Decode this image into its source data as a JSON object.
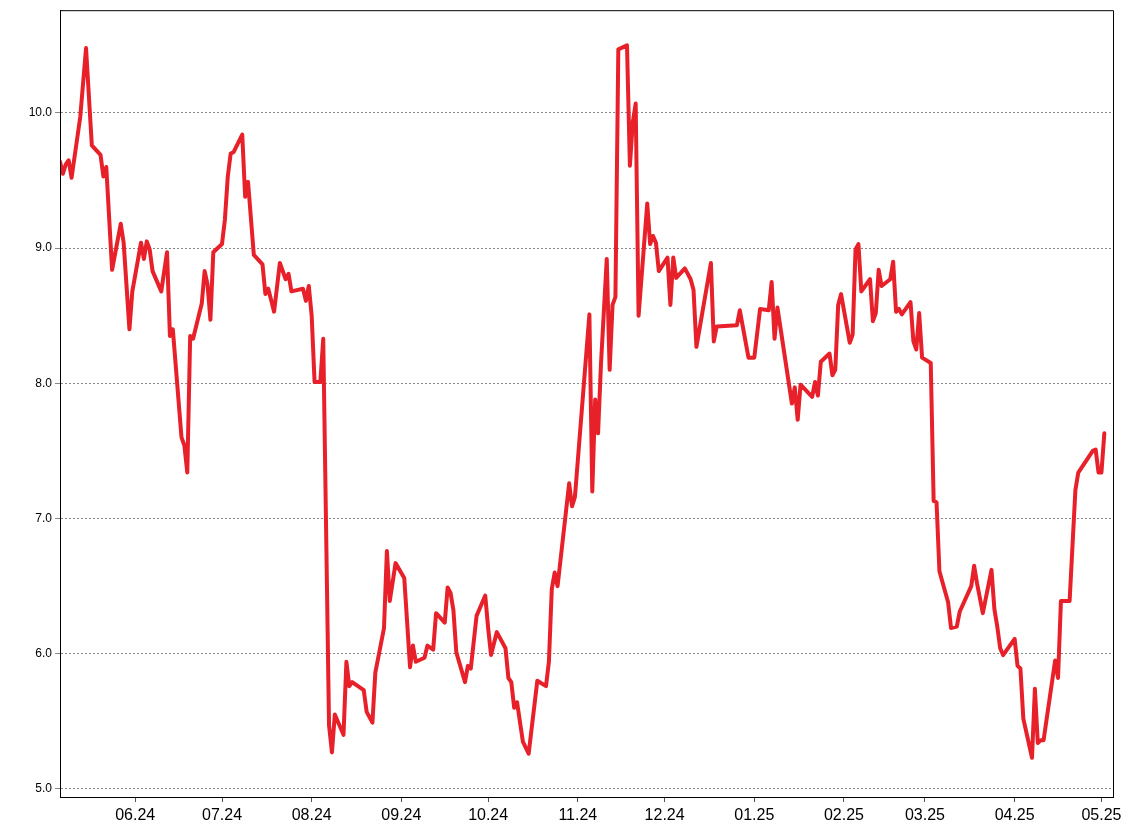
{
  "chart_data": {
    "type": "line",
    "grid": "y",
    "legend": false,
    "marker": "none",
    "line_style": "solid",
    "xlim": [
      "2024-05-06",
      "2025-05-05"
    ],
    "xticks": [
      {
        "value": "2024-06-01",
        "label": "06.24"
      },
      {
        "value": "2024-07-01",
        "label": "07.24"
      },
      {
        "value": "2024-08-01",
        "label": "08.24"
      },
      {
        "value": "2024-09-01",
        "label": "09.24"
      },
      {
        "value": "2024-10-01",
        "label": "10.24"
      },
      {
        "value": "2024-11-01",
        "label": "11.24"
      },
      {
        "value": "2024-12-01",
        "label": "12.24"
      },
      {
        "value": "2025-01-01",
        "label": "01.25"
      },
      {
        "value": "2025-02-01",
        "label": "02.25"
      },
      {
        "value": "2025-03-01",
        "label": "03.25"
      },
      {
        "value": "2025-04-01",
        "label": "04.25"
      },
      {
        "value": "2025-05-01",
        "label": "05.25"
      }
    ],
    "ylim": [
      4.94,
      10.76
    ],
    "yticks": [
      {
        "value": 5,
        "label": "5.0"
      },
      {
        "value": 6,
        "label": "6.0"
      },
      {
        "value": 7,
        "label": "7.0"
      },
      {
        "value": 8,
        "label": "8.0"
      },
      {
        "value": 9,
        "label": "9.0"
      },
      {
        "value": 10,
        "label": "10.0"
      }
    ],
    "series": [
      {
        "color": "#e8202a",
        "x": [
          "2024-05-06",
          "2024-05-07",
          "2024-05-08",
          "2024-05-09",
          "2024-05-10",
          "2024-05-13",
          "2024-05-15",
          "2024-05-17",
          "2024-05-20",
          "2024-05-21",
          "2024-05-22",
          "2024-05-24",
          "2024-05-27",
          "2024-05-28",
          "2024-05-30",
          "2024-05-31",
          "2024-06-03",
          "2024-06-04",
          "2024-06-05",
          "2024-06-06",
          "2024-06-07",
          "2024-06-10",
          "2024-06-12",
          "2024-06-13",
          "2024-06-14",
          "2024-06-17",
          "2024-06-18",
          "2024-06-19",
          "2024-06-20",
          "2024-06-21",
          "2024-06-24",
          "2024-06-25",
          "2024-06-26",
          "2024-06-27",
          "2024-06-28",
          "2024-07-01",
          "2024-07-02",
          "2024-07-03",
          "2024-07-04",
          "2024-07-05",
          "2024-07-08",
          "2024-07-09",
          "2024-07-10",
          "2024-07-12",
          "2024-07-15",
          "2024-07-16",
          "2024-07-17",
          "2024-07-19",
          "2024-07-21",
          "2024-07-23",
          "2024-07-24",
          "2024-07-25",
          "2024-07-29",
          "2024-07-30",
          "2024-07-31",
          "2024-08-01",
          "2024-08-02",
          "2024-08-04",
          "2024-08-05",
          "2024-08-07",
          "2024-08-08",
          "2024-08-09",
          "2024-08-12",
          "2024-08-13",
          "2024-08-14",
          "2024-08-15",
          "2024-08-19",
          "2024-08-20",
          "2024-08-22",
          "2024-08-23",
          "2024-08-26",
          "2024-08-27",
          "2024-08-28",
          "2024-08-30",
          "2024-09-02",
          "2024-09-04",
          "2024-09-05",
          "2024-09-06",
          "2024-09-09",
          "2024-09-10",
          "2024-09-12",
          "2024-09-13",
          "2024-09-16",
          "2024-09-17",
          "2024-09-18",
          "2024-09-19",
          "2024-09-20",
          "2024-09-23",
          "2024-09-24",
          "2024-09-25",
          "2024-09-27",
          "2024-09-30",
          "2024-10-01",
          "2024-10-02",
          "2024-10-04",
          "2024-10-07",
          "2024-10-08",
          "2024-10-09",
          "2024-10-10",
          "2024-10-11",
          "2024-10-13",
          "2024-10-15",
          "2024-10-18",
          "2024-10-21",
          "2024-10-22",
          "2024-10-23",
          "2024-10-24",
          "2024-10-25",
          "2024-10-29",
          "2024-10-30",
          "2024-10-31",
          "2024-11-05",
          "2024-11-06",
          "2024-11-07",
          "2024-11-08",
          "2024-11-09",
          "2024-11-11",
          "2024-11-12",
          "2024-11-13",
          "2024-11-14",
          "2024-11-15",
          "2024-11-18",
          "2024-11-19",
          "2024-11-20",
          "2024-11-21",
          "2024-11-22",
          "2024-11-25",
          "2024-11-26",
          "2024-11-27",
          "2024-11-28",
          "2024-11-29",
          "2024-12-02",
          "2024-12-03",
          "2024-12-04",
          "2024-12-05",
          "2024-12-08",
          "2024-12-10",
          "2024-12-11",
          "2024-12-12",
          "2024-12-17",
          "2024-12-18",
          "2024-12-19",
          "2024-12-26",
          "2024-12-27",
          "2024-12-30",
          "2025-01-01",
          "2025-01-03",
          "2025-01-06",
          "2025-01-07",
          "2025-01-08",
          "2025-01-09",
          "2025-01-14",
          "2025-01-15",
          "2025-01-16",
          "2025-01-17",
          "2025-01-21",
          "2025-01-22",
          "2025-01-23",
          "2025-01-24",
          "2025-01-27",
          "2025-01-28",
          "2025-01-29",
          "2025-01-30",
          "2025-01-31",
          "2025-02-03",
          "2025-02-04",
          "2025-02-05",
          "2025-02-06",
          "2025-02-07",
          "2025-02-10",
          "2025-02-11",
          "2025-02-12",
          "2025-02-13",
          "2025-02-14",
          "2025-02-17",
          "2025-02-18",
          "2025-02-19",
          "2025-02-20",
          "2025-02-21",
          "2025-02-24",
          "2025-02-25",
          "2025-02-26",
          "2025-02-27",
          "2025-02-28",
          "2025-03-03",
          "2025-03-04",
          "2025-03-05",
          "2025-03-06",
          "2025-03-09",
          "2025-03-10",
          "2025-03-12",
          "2025-03-13",
          "2025-03-17",
          "2025-03-18",
          "2025-03-19",
          "2025-03-21",
          "2025-03-24",
          "2025-03-25",
          "2025-03-26",
          "2025-03-27",
          "2025-03-28",
          "2025-04-01",
          "2025-04-02",
          "2025-04-03",
          "2025-04-04",
          "2025-04-07",
          "2025-04-08",
          "2025-04-09",
          "2025-04-10",
          "2025-04-11",
          "2025-04-15",
          "2025-04-16",
          "2025-04-17",
          "2025-04-20",
          "2025-04-22",
          "2025-04-23",
          "2025-04-28",
          "2025-04-29",
          "2025-04-30",
          "2025-05-01",
          "2025-05-02"
        ],
        "values": [
          9.64,
          9.55,
          9.62,
          9.65,
          9.52,
          9.97,
          10.48,
          9.76,
          9.69,
          9.53,
          9.6,
          8.84,
          9.18,
          9.04,
          8.4,
          8.68,
          9.04,
          8.92,
          9.05,
          8.99,
          8.83,
          8.68,
          8.97,
          8.35,
          8.4,
          7.6,
          7.54,
          7.34,
          8.35,
          8.33,
          8.59,
          8.83,
          8.73,
          8.47,
          8.97,
          9.03,
          9.21,
          9.53,
          9.7,
          9.71,
          9.84,
          9.38,
          9.49,
          8.95,
          8.88,
          8.66,
          8.7,
          8.53,
          8.89,
          8.77,
          8.81,
          8.68,
          8.7,
          8.61,
          8.72,
          8.5,
          8.01,
          8.01,
          8.33,
          5.47,
          5.27,
          5.55,
          5.4,
          5.94,
          5.76,
          5.79,
          5.73,
          5.57,
          5.49,
          5.86,
          6.19,
          6.76,
          6.39,
          6.67,
          6.56,
          5.9,
          6.06,
          5.94,
          5.97,
          6.06,
          6.03,
          6.3,
          6.23,
          6.49,
          6.45,
          6.32,
          6.01,
          5.79,
          5.91,
          5.89,
          6.28,
          6.43,
          6.19,
          5.99,
          6.16,
          6.04,
          5.82,
          5.79,
          5.6,
          5.64,
          5.35,
          5.26,
          5.8,
          5.76,
          5.94,
          6.48,
          6.6,
          6.5,
          7.26,
          7.09,
          7.16,
          8.51,
          7.2,
          7.88,
          7.63,
          8.14,
          8.92,
          8.1,
          8.58,
          8.64,
          10.47,
          10.5,
          9.61,
          9.93,
          10.07,
          8.5,
          9.33,
          9.03,
          9.09,
          9.04,
          8.83,
          8.93,
          8.58,
          8.93,
          8.78,
          8.85,
          8.77,
          8.69,
          8.27,
          8.89,
          8.31,
          8.42,
          8.43,
          8.54,
          8.19,
          8.19,
          8.55,
          8.54,
          8.75,
          8.33,
          8.56,
          7.85,
          7.97,
          7.73,
          7.99,
          7.9,
          8.01,
          7.91,
          8.16,
          8.22,
          8.06,
          8.1,
          8.58,
          8.66,
          8.3,
          8.36,
          8.99,
          9.03,
          8.68,
          8.77,
          8.46,
          8.52,
          8.84,
          8.72,
          8.77,
          8.9,
          8.53,
          8.55,
          8.51,
          8.6,
          8.31,
          8.25,
          8.52,
          8.19,
          8.15,
          7.13,
          7.12,
          6.61,
          6.38,
          6.19,
          6.2,
          6.31,
          6.5,
          6.65,
          6.52,
          6.3,
          6.62,
          6.33,
          6.2,
          6.04,
          5.99,
          6.11,
          5.91,
          5.89,
          5.52,
          5.23,
          5.74,
          5.34,
          5.36,
          5.36,
          5.95,
          5.82,
          6.39,
          6.39,
          7.21,
          7.34,
          7.5,
          7.51,
          7.34,
          7.34,
          7.63
        ]
      }
    ]
  }
}
